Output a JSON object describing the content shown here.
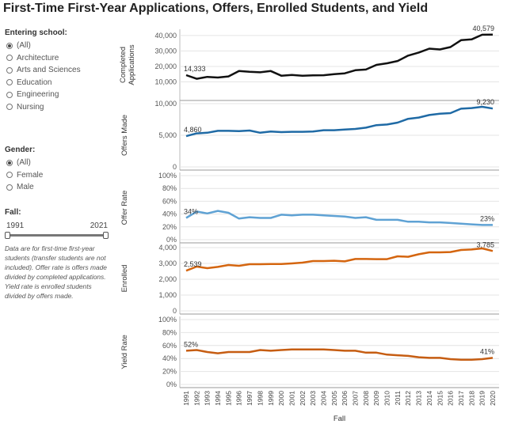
{
  "title": "First-Time First-Year Applications, Offers, Enrolled Students, and Yield",
  "filters": {
    "school": {
      "label": "Entering school:",
      "options": [
        "(All)",
        "Architecture",
        "Arts and Sciences",
        "Education",
        "Engineering",
        "Nursing"
      ],
      "selected": 0
    },
    "gender": {
      "label": "Gender:",
      "options": [
        "(All)",
        "Female",
        "Male"
      ],
      "selected": 0
    },
    "fall": {
      "label": "Fall:",
      "min": "1991",
      "max": "2021"
    }
  },
  "note": "Data are for first-time first-year students (transfer students are not included). Offer rate is offers made divided by completed applications. Yield rate is enrolled students divided by offers made.",
  "colors": {
    "applications": "#111111",
    "offers": "#1f6aa5",
    "offer_rate": "#5fa2d4",
    "enrolled": "#d4650f",
    "yield": "#c65d12",
    "grid": "#e4e4e4"
  },
  "chart_data": [
    {
      "type": "line",
      "name": "applications",
      "ylabel": "Completed Applications",
      "yticks": [
        "40,000",
        "30,000",
        "20,000",
        "10,000"
      ],
      "ylim": [
        0,
        42000
      ],
      "tick_values": [
        40000,
        30000,
        20000,
        10000
      ],
      "start_label": "14,333",
      "end_label": "40,579",
      "x": [
        "1991",
        "1992",
        "1993",
        "1994",
        "1995",
        "1996",
        "1997",
        "1998",
        "1999",
        "2000",
        "2001",
        "2002",
        "2003",
        "2004",
        "2005",
        "2006",
        "2007",
        "2008",
        "2009",
        "2010",
        "2011",
        "2012",
        "2013",
        "2014",
        "2015",
        "2016",
        "2017",
        "2018",
        "2019",
        "2020"
      ],
      "values": [
        14333,
        12000,
        13200,
        12800,
        13500,
        17000,
        16500,
        16200,
        17000,
        14000,
        14500,
        14000,
        14200,
        14300,
        15000,
        15500,
        17500,
        18000,
        21000,
        22000,
        23500,
        27000,
        29000,
        31500,
        31000,
        32500,
        37000,
        37500,
        40500,
        40579
      ]
    },
    {
      "type": "line",
      "name": "offers",
      "ylabel": "Offers Made",
      "yticks": [
        "10,000",
        "5,000",
        "0"
      ],
      "ylim": [
        0,
        10000
      ],
      "tick_values": [
        10000,
        5000,
        0
      ],
      "start_label": "4,860",
      "end_label": "9,230",
      "values": [
        4860,
        5300,
        5400,
        5700,
        5700,
        5650,
        5750,
        5400,
        5600,
        5500,
        5550,
        5550,
        5600,
        5800,
        5800,
        5900,
        6000,
        6200,
        6600,
        6700,
        7000,
        7600,
        7800,
        8200,
        8400,
        8500,
        9200,
        9300,
        9500,
        9230
      ]
    },
    {
      "type": "line",
      "name": "offer_rate",
      "ylabel": "Offer Rate",
      "yticks": [
        "100%",
        "80%",
        "60%",
        "40%",
        "20%",
        "0%"
      ],
      "ylim": [
        0,
        100
      ],
      "tick_values": [
        100,
        80,
        60,
        40,
        20,
        0
      ],
      "start_label": "34%",
      "end_label": "23%",
      "values": [
        34,
        44,
        41,
        45,
        42,
        33,
        35,
        34,
        34,
        39,
        38,
        39,
        39,
        38,
        37,
        36,
        34,
        35,
        31,
        31,
        31,
        28,
        28,
        27,
        27,
        26,
        25,
        24,
        23,
        23
      ]
    },
    {
      "type": "line",
      "name": "enrolled",
      "ylabel": "Enrolled",
      "yticks": [
        "4,000",
        "3,000",
        "2,000",
        "1,000",
        "0"
      ],
      "ylim": [
        0,
        4100
      ],
      "tick_values": [
        4000,
        3000,
        2000,
        1000,
        0
      ],
      "start_label": "2,539",
      "end_label": "3,785",
      "values": [
        2539,
        2800,
        2700,
        2780,
        2900,
        2850,
        2950,
        2950,
        2960,
        2960,
        3000,
        3050,
        3150,
        3150,
        3170,
        3130,
        3280,
        3280,
        3270,
        3270,
        3450,
        3420,
        3580,
        3700,
        3700,
        3720,
        3850,
        3880,
        3950,
        3785
      ]
    },
    {
      "type": "line",
      "name": "yield",
      "ylabel": "Yield Rate",
      "yticks": [
        "100%",
        "80%",
        "60%",
        "40%",
        "20%",
        "0%"
      ],
      "ylim": [
        0,
        100
      ],
      "tick_values": [
        100,
        80,
        60,
        40,
        20,
        0
      ],
      "start_label": "52%",
      "end_label": "41%",
      "values": [
        52,
        53,
        50,
        48,
        50,
        50,
        50,
        53,
        52,
        53,
        54,
        54,
        54,
        54,
        53,
        52,
        52,
        49,
        49,
        46,
        45,
        44,
        42,
        41,
        41,
        39,
        38,
        38,
        39,
        41
      ]
    }
  ],
  "xlabel": "Fall"
}
